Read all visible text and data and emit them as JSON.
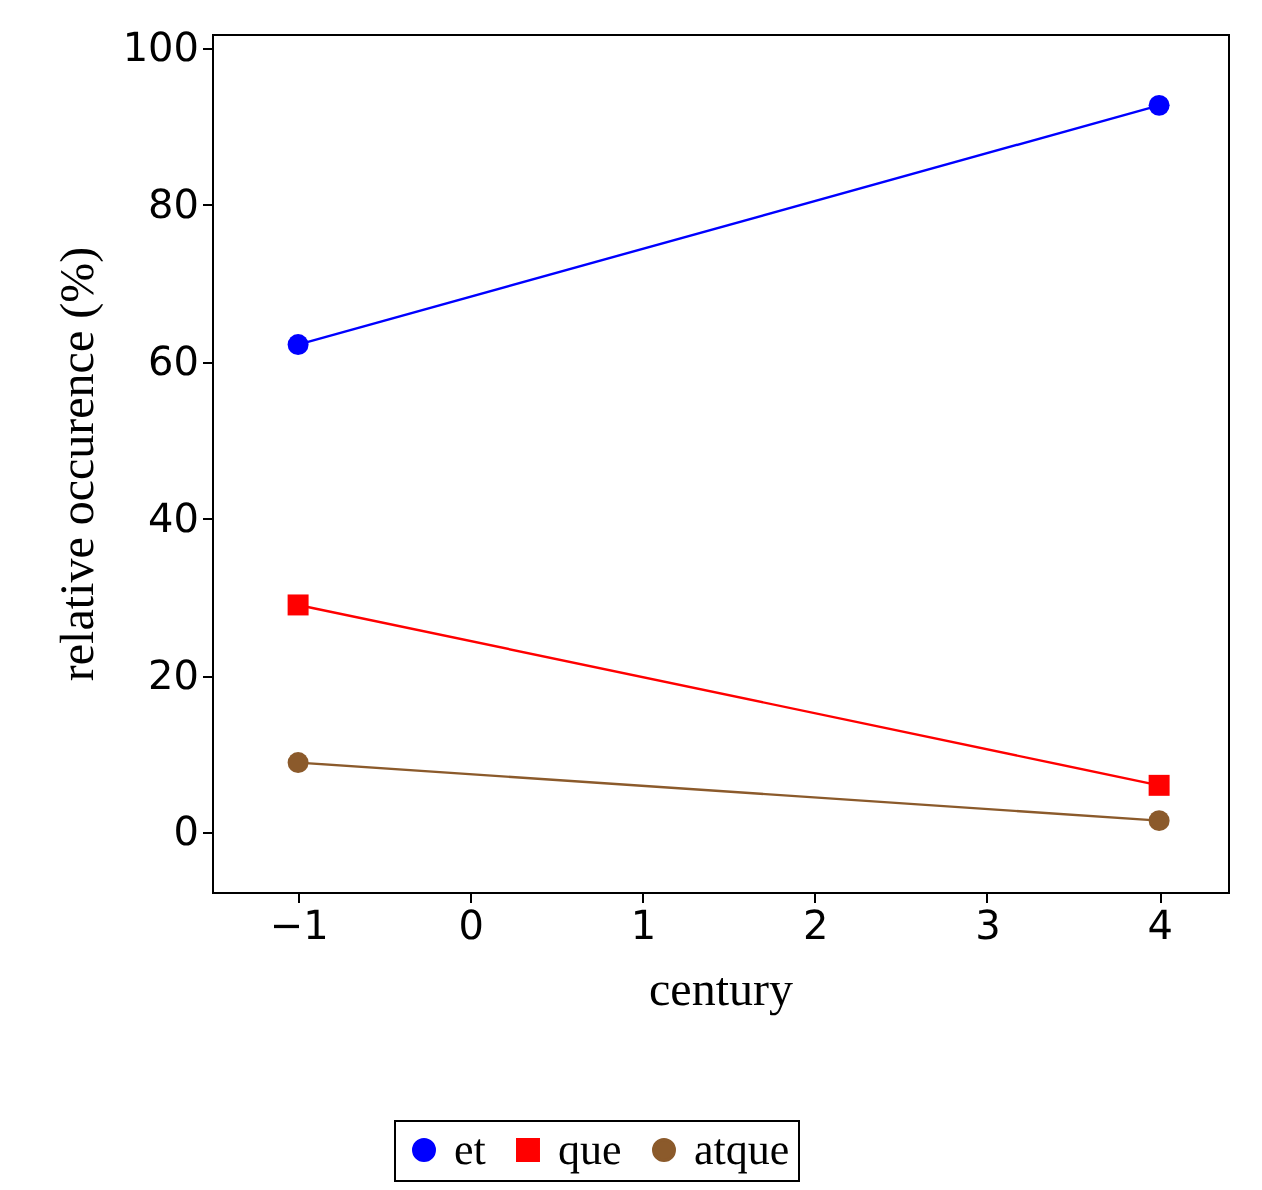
{
  "chart_data": {
    "type": "line",
    "xlabel": "century",
    "ylabel": "relative occurence (%)",
    "x": [
      -1,
      4
    ],
    "series": [
      {
        "name": "et",
        "color": "#0000ff",
        "marker": "circle",
        "values": [
          62.2,
          92.7
        ]
      },
      {
        "name": "que",
        "color": "#ff0000",
        "marker": "square",
        "values": [
          29,
          6
        ]
      },
      {
        "name": "atque",
        "color": "#8b5a2b",
        "marker": "circle",
        "values": [
          8.9,
          1.5
        ]
      }
    ],
    "xlim": [
      -1.5,
      4.4
    ],
    "xticks": [
      {
        "value": -1,
        "label": "−1"
      },
      0,
      1,
      2,
      3,
      4
    ],
    "ylim": [
      -7.6,
      101.8
    ],
    "yticks": [
      0,
      20,
      40,
      60,
      80,
      100
    ],
    "grid": false,
    "legend": "bottom",
    "line_style": "solid"
  }
}
